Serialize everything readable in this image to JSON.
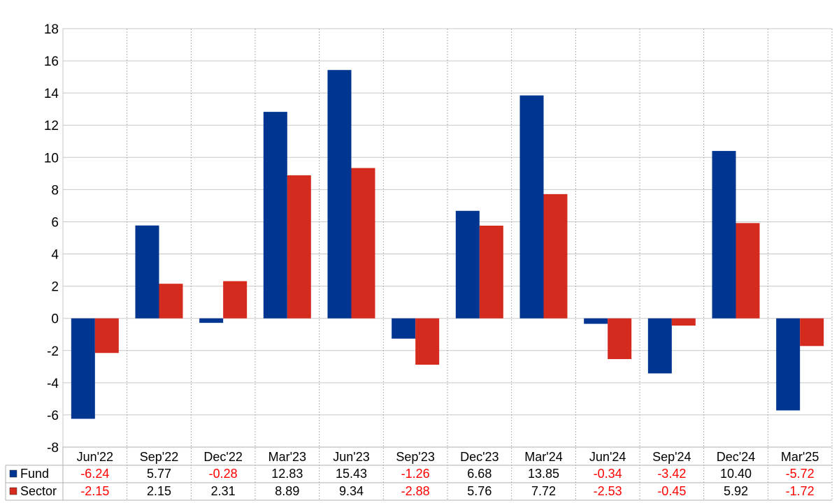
{
  "chart_data": {
    "type": "bar",
    "categories": [
      "Jun'22",
      "Sep'22",
      "Dec'22",
      "Mar'23",
      "Jun'23",
      "Sep'23",
      "Dec'23",
      "Mar'24",
      "Jun'24",
      "Sep'24",
      "Dec'24",
      "Mar'25"
    ],
    "series": [
      {
        "name": "Fund",
        "color": "#003591",
        "values": [
          -6.24,
          5.77,
          -0.28,
          12.83,
          15.43,
          -1.26,
          6.68,
          13.85,
          -0.34,
          -3.42,
          10.4,
          -5.72
        ],
        "labels": [
          "-6.24",
          "5.77",
          "-0.28",
          "12.83",
          "15.43",
          "-1.26",
          "6.68",
          "13.85",
          "-0.34",
          "-3.42",
          "10.40",
          "-5.72"
        ]
      },
      {
        "name": "Sector",
        "color": "#d52b1e",
        "values": [
          -2.15,
          2.15,
          2.31,
          8.89,
          9.34,
          -2.88,
          5.76,
          7.72,
          -2.53,
          -0.45,
          5.92,
          -1.72
        ],
        "labels": [
          "-2.15",
          "2.15",
          "2.31",
          "8.89",
          "9.34",
          "-2.88",
          "5.76",
          "7.72",
          "-2.53",
          "-0.45",
          "5.92",
          "-1.72"
        ]
      }
    ],
    "ylim": [
      -8,
      18
    ],
    "yticks": [
      18,
      16,
      14,
      12,
      10,
      8,
      6,
      4,
      2,
      0,
      -2,
      -4,
      -6,
      -8
    ],
    "grid": true,
    "legend": "data-table-below",
    "negative_label_color": "#ff0000",
    "positive_label_color": "#000000"
  }
}
